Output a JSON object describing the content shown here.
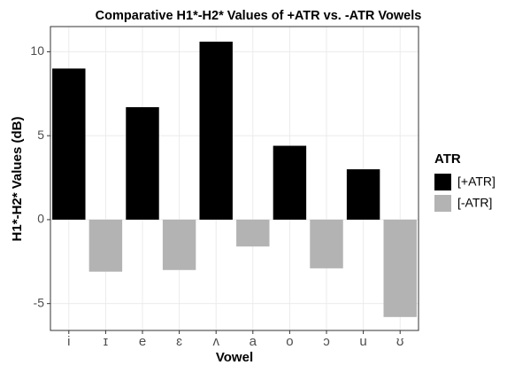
{
  "chart_data": {
    "type": "bar",
    "title": "Comparative H1*-H2* Values of +ATR vs. -ATR Vowels",
    "x_label": "Vowel",
    "y_label": "H1*-H2* Values (dB)",
    "categories": [
      "i",
      "ɪ",
      "e",
      "ɛ",
      "ʌ",
      "a",
      "o",
      "ɔ",
      "u",
      "ʊ"
    ],
    "series": [
      {
        "name": "[+ATR]",
        "color": "#000000",
        "values": [
          9.0,
          null,
          6.7,
          null,
          10.6,
          null,
          4.4,
          null,
          3.0,
          null
        ]
      },
      {
        "name": "[-ATR]",
        "color": "#b3b3b3",
        "values": [
          null,
          -3.1,
          null,
          -3.0,
          null,
          -1.6,
          null,
          -2.9,
          null,
          -5.8
        ]
      }
    ],
    "ylim": [
      -6.6,
      11.5
    ],
    "yticks": [
      -5,
      0,
      5,
      10
    ],
    "grid": true,
    "legend_title": "ATR",
    "legend_position": "right"
  }
}
